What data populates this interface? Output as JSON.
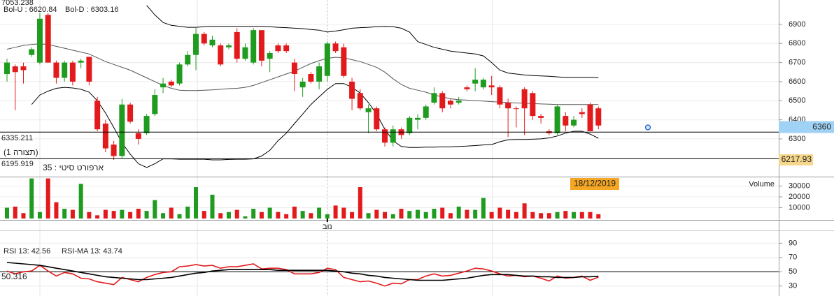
{
  "chart_data": [
    {
      "type": "candlestick",
      "ylim": [
        6102,
        7028
      ],
      "yticks": [
        6300,
        6400,
        6500,
        6600,
        6700,
        6800,
        6900
      ],
      "grid": true,
      "up_color": "#1f9c1f",
      "down_color": "#e31a1c",
      "open": [
        6640,
        6680,
        6680,
        6740,
        6700,
        6950,
        6700,
        6620,
        6700,
        6700,
        6730,
        6500,
        6380,
        6270,
        6210,
        6480,
        6330,
        6330,
        6430,
        6570,
        6600,
        6590,
        6690,
        6740,
        6850,
        6790,
        6790,
        6780,
        6860,
        6720,
        6700,
        6870,
        6720,
        6790,
        6790,
        6700,
        6570,
        6640,
        6600,
        6630,
        6800,
        6780,
        6600,
        6540,
        6440,
        6460,
        6350,
        6280,
        6350,
        6330,
        6400,
        6410,
        6490,
        6540,
        6500,
        6490,
        6570,
        6590,
        6570,
        6580,
        6570,
        6490,
        6460,
        6560,
        6540,
        6420,
        6340,
        6330,
        6420,
        6370,
        6440,
        6480,
        6460
      ],
      "high": [
        6720,
        6690,
        6700,
        6780,
        6960,
        6960,
        6710,
        6710,
        6710,
        6720,
        6730,
        6520,
        6400,
        6290,
        6510,
        6490,
        6350,
        6430,
        6560,
        6620,
        6610,
        6700,
        6760,
        6880,
        6860,
        6840,
        6800,
        6800,
        6880,
        6800,
        6880,
        6870,
        6760,
        6800,
        6800,
        6720,
        6620,
        6650,
        6700,
        6810,
        6810,
        6800,
        6620,
        6560,
        6480,
        6470,
        6360,
        6370,
        6360,
        6420,
        6430,
        6480,
        6570,
        6550,
        6510,
        6520,
        6580,
        6670,
        6620,
        6630,
        6580,
        6510,
        6470,
        6570,
        6550,
        6430,
        6350,
        6480,
        6440,
        6420,
        6460,
        6490,
        6470
      ],
      "low": [
        6600,
        6450,
        6590,
        6730,
        6690,
        6700,
        6590,
        6600,
        6580,
        6670,
        6580,
        6340,
        6230,
        6190,
        6200,
        6380,
        6270,
        6320,
        6420,
        6540,
        6570,
        6580,
        6680,
        6660,
        6790,
        6780,
        6680,
        6770,
        6700,
        6710,
        6690,
        6680,
        6650,
        6750,
        6750,
        6550,
        6520,
        6590,
        6560,
        6600,
        6750,
        6620,
        6450,
        6450,
        6330,
        6340,
        6260,
        6260,
        6300,
        6320,
        6350,
        6400,
        6480,
        6440,
        6460,
        6480,
        6550,
        6550,
        6560,
        6530,
        6460,
        6310,
        6360,
        6320,
        6400,
        6380,
        6320,
        6320,
        6340,
        6360,
        6410,
        6340,
        6350
      ],
      "close": [
        6700,
        6650,
        6660,
        6770,
        6930,
        6700,
        6620,
        6700,
        6600,
        6710,
        6600,
        6350,
        6250,
        6210,
        6480,
        6390,
        6300,
        6420,
        6530,
        6590,
        6580,
        6690,
        6740,
        6850,
        6800,
        6820,
        6690,
        6790,
        6720,
        6780,
        6870,
        6710,
        6750,
        6760,
        6760,
        6640,
        6600,
        6600,
        6680,
        6800,
        6760,
        6630,
        6510,
        6460,
        6460,
        6350,
        6280,
        6350,
        6320,
        6410,
        6410,
        6470,
        6540,
        6460,
        6480,
        6500,
        6560,
        6610,
        6610,
        6570,
        6480,
        6460,
        6460,
        6460,
        6420,
        6410,
        6330,
        6470,
        6370,
        6400,
        6430,
        6340,
        6370
      ],
      "series": [
        {
          "name": "Bol-U : 6620.84",
          "color": "#000000",
          "label_color": "#e31a1c",
          "values": [
            null,
            null,
            null,
            null,
            null,
            null,
            null,
            null,
            null,
            null,
            null,
            null,
            null,
            null,
            null,
            null,
            null,
            7000,
            6950,
            6910,
            6895,
            6890,
            6885,
            6885,
            6888,
            6890,
            6890,
            6890,
            6890,
            6890,
            6890,
            6890,
            6888,
            6885,
            6883,
            6880,
            6878,
            6873,
            6870,
            6860,
            6865,
            6872,
            6880,
            6883,
            6885,
            6888,
            6890,
            6888,
            6880,
            6860,
            6810,
            6795,
            6780,
            6770,
            6760,
            6755,
            6750,
            6745,
            6735,
            6700,
            6660,
            6645,
            6640,
            6635,
            6632,
            6630,
            6628,
            6625,
            6622,
            6622,
            6622,
            6622,
            6620.84
          ]
        },
        {
          "color": "#555555",
          "values": [
            6770,
            6780,
            6790,
            6795,
            6798,
            6795,
            6785,
            6775,
            6765,
            6755,
            6745,
            6725,
            6705,
            6690,
            6675,
            6660,
            6640,
            6620,
            6600,
            6580,
            6565,
            6555,
            6553,
            6553,
            6555,
            6557,
            6560,
            6563,
            6565,
            6570,
            6580,
            6595,
            6610,
            6625,
            6640,
            6655,
            6675,
            6695,
            6710,
            6722,
            6728,
            6725,
            6715,
            6705,
            6690,
            6675,
            6650,
            6615,
            6585,
            6565,
            6555,
            6545,
            6530,
            6520,
            6510,
            6505,
            6503,
            6500,
            6498,
            6495,
            6493,
            6490,
            6488,
            6487,
            6485,
            6483,
            6482,
            6480,
            6480,
            6480,
            6480,
            6480,
            6480
          ]
        },
        {
          "name": "Bol-D : 6303.16",
          "color": "#000000",
          "label_color": "#1f9c1f",
          "values": [
            null,
            null,
            null,
            6480,
            6530,
            6550,
            6565,
            6570,
            6567,
            6560,
            6545,
            6500,
            6435,
            6360,
            6280,
            6220,
            6170,
            6150,
            6170,
            6195,
            6195,
            6193,
            6193,
            6193,
            6193,
            6190,
            6190,
            6192,
            6193,
            6193,
            6195,
            6210,
            6240,
            6290,
            6330,
            6380,
            6430,
            6480,
            6520,
            6560,
            6590,
            6590,
            6570,
            6540,
            6490,
            6430,
            6350,
            6290,
            6260,
            6255,
            6255,
            6257,
            6257,
            6258,
            6258,
            6260,
            6262,
            6265,
            6268,
            6270,
            6285,
            6295,
            6297,
            6297,
            6298,
            6300,
            6305,
            6315,
            6330,
            6340,
            6340,
            6325,
            6303.16
          ]
        }
      ],
      "hlines": [
        6335.211,
        6195.919
      ],
      "marker": 6360,
      "annotations": [
        "7053.238",
        "(תצורה 1)",
        "ארפורט סיטי : 35",
        "6217.93"
      ]
    },
    {
      "type": "bar",
      "categories": [
        null,
        null,
        null,
        null,
        null,
        null,
        null,
        null,
        null,
        null,
        null,
        null,
        null,
        null,
        null,
        null,
        null,
        null,
        null,
        null,
        null,
        null,
        null,
        null,
        null,
        null,
        null,
        null,
        null,
        null,
        null,
        null,
        null,
        null,
        null,
        null,
        null,
        null,
        null,
        "נוב",
        null,
        null,
        null,
        null,
        null,
        null,
        null,
        null,
        null,
        null,
        null,
        null,
        null,
        null,
        null,
        null,
        null,
        null,
        null,
        null,
        null,
        null,
        null,
        null,
        null,
        null,
        null,
        null,
        null,
        null,
        null,
        null,
        null
      ],
      "series": [
        {
          "name": "Volume",
          "color": "#1f3fd0",
          "values": [
            10000,
            11000,
            5000,
            37000,
            6000,
            37000,
            15000,
            9000,
            8000,
            32000,
            6000,
            3000,
            8000,
            7000,
            8000,
            6000,
            9000,
            7000,
            17000,
            5000,
            10000,
            4000,
            11000,
            29000,
            7000,
            22000,
            5000,
            6000,
            8000,
            2000,
            9000,
            6000,
            10000,
            6000,
            4000,
            11000,
            7000,
            5000,
            10000,
            4000,
            12000,
            10000,
            6000,
            29000,
            5000,
            8000,
            6000,
            4000,
            9000,
            7000,
            8000,
            6000,
            9000,
            10000,
            5000,
            11000,
            8000,
            8000,
            19000,
            6000,
            10000,
            8000,
            6000,
            14000,
            6000,
            5000,
            5000,
            6000,
            7000,
            6000,
            6000,
            6000,
            4000
          ]
        }
      ],
      "ylim": [
        0,
        37400
      ],
      "yticks": [
        10000,
        20000,
        30000
      ],
      "grid": true,
      "annotations": [
        "18/12/2019"
      ]
    },
    {
      "type": "line",
      "series": [
        {
          "name": "RSI 13: 42.56",
          "color": "#e31a1c",
          "values": [
            51,
            47,
            50,
            51,
            59,
            51,
            44,
            49,
            47,
            41,
            40,
            36,
            34,
            32,
            42,
            39,
            36,
            42,
            46,
            49,
            50,
            57,
            58,
            60,
            58,
            59,
            55,
            57,
            57,
            59,
            61,
            54,
            55,
            55,
            53,
            47,
            47,
            47,
            49,
            55,
            53,
            42,
            39,
            36,
            37,
            34,
            30,
            34,
            33,
            39,
            39,
            44,
            47,
            44,
            45,
            48,
            51,
            55,
            54,
            51,
            47,
            44,
            45,
            43,
            44,
            41,
            37,
            44,
            41,
            42,
            44,
            38,
            42.56
          ]
        },
        {
          "name": "RSI-MA 13: 43.74",
          "color": "#000000",
          "values": [
            63,
            62,
            61,
            60,
            59,
            57,
            55,
            53,
            51,
            49,
            47,
            45,
            43,
            42,
            41,
            40,
            39,
            39,
            40,
            41,
            42,
            44,
            46,
            48,
            49,
            51,
            52,
            53,
            53,
            53,
            53,
            53,
            53,
            52,
            52,
            52,
            52,
            52,
            52,
            52,
            51,
            50,
            48,
            47,
            45,
            44,
            42,
            41,
            40,
            39,
            38,
            38,
            38,
            38,
            39,
            40,
            41,
            43,
            45,
            46,
            46,
            46,
            45,
            44,
            44,
            43,
            43,
            42,
            42,
            42,
            43,
            43,
            43.74
          ]
        }
      ],
      "ylim": [
        16,
        108
      ],
      "yticks": [
        30,
        50,
        70,
        90
      ],
      "grid": true,
      "hlines": [
        50
      ],
      "annotations": [
        "50.316"
      ]
    }
  ]
}
